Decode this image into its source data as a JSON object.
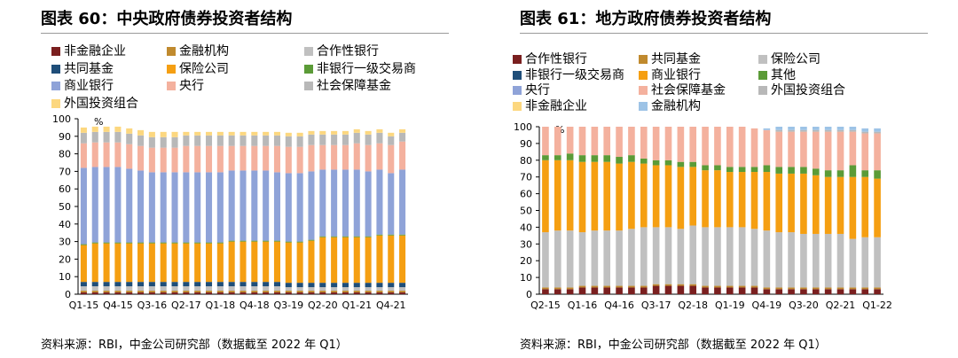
{
  "footer": {
    "left_source": "资料来源：RBI，中金公司研究部（数据截至 2022 年 Q1）",
    "right_source": "资料来源：RBI，中金公司研究部（数据截至 2022 年 Q1）"
  },
  "chart_data": [
    {
      "type": "bar",
      "stacked": true,
      "title": "图表 60：中央政府债券投资者结构",
      "ylabel": "%",
      "ylim": [
        0,
        100
      ],
      "yticks": [
        0,
        10,
        20,
        30,
        40,
        50,
        60,
        70,
        80,
        90,
        100
      ],
      "grid": false,
      "legend_position": "top",
      "x_tick_labels": [
        "Q1-15",
        "Q4-15",
        "Q3-16",
        "Q2-17",
        "Q1-18",
        "Q4-18",
        "Q3-19",
        "Q2-20",
        "Q1-21",
        "Q4-21"
      ],
      "categories": [
        "Q1-15",
        "Q2-15",
        "Q3-15",
        "Q4-15",
        "Q1-16",
        "Q2-16",
        "Q3-16",
        "Q4-16",
        "Q1-17",
        "Q2-17",
        "Q3-17",
        "Q4-17",
        "Q1-18",
        "Q2-18",
        "Q3-18",
        "Q4-18",
        "Q1-19",
        "Q2-19",
        "Q3-19",
        "Q4-19",
        "Q1-20",
        "Q2-20",
        "Q3-20",
        "Q4-20",
        "Q1-21",
        "Q2-21",
        "Q3-21",
        "Q4-21",
        "Q1-22"
      ],
      "series": [
        {
          "name": "非金融企业",
          "color": "#7a1f1f",
          "values": [
            1.0,
            1.0,
            1.0,
            1.0,
            1.0,
            1.0,
            1.0,
            1.0,
            1.0,
            1.0,
            1.0,
            1.0,
            1.0,
            1.0,
            1.0,
            1.0,
            1.0,
            1.0,
            1.0,
            1.0,
            1.0,
            1.0,
            1.0,
            1.0,
            1.0,
            1.0,
            1.0,
            1.0,
            1.0
          ]
        },
        {
          "name": "金融机构",
          "color": "#c08a2e",
          "values": [
            1.0,
            1.0,
            1.0,
            1.0,
            1.0,
            1.0,
            1.0,
            1.0,
            1.0,
            1.0,
            1.0,
            1.0,
            1.0,
            1.0,
            1.0,
            1.0,
            1.0,
            1.0,
            1.0,
            1.0,
            1.0,
            1.0,
            1.0,
            1.0,
            1.0,
            1.0,
            1.0,
            1.0,
            1.0
          ]
        },
        {
          "name": "合作性银行",
          "color": "#c0c0c0",
          "values": [
            2.5,
            2.5,
            2.5,
            2.5,
            2.5,
            2.5,
            2.5,
            2.5,
            2.5,
            2.5,
            2.5,
            2.5,
            2.5,
            2.5,
            2.5,
            2.5,
            2.5,
            2.5,
            2.0,
            2.0,
            2.0,
            2.0,
            2.0,
            2.0,
            2.0,
            2.0,
            2.0,
            2.0,
            2.0
          ]
        },
        {
          "name": "共同基金",
          "color": "#1f4e79",
          "values": [
            2.5,
            2.5,
            2.5,
            2.5,
            2.5,
            2.5,
            2.5,
            2.5,
            2.5,
            2.5,
            2.5,
            2.5,
            2.5,
            2.5,
            2.5,
            2.5,
            2.5,
            2.5,
            2.5,
            2.5,
            2.5,
            2.5,
            2.5,
            2.5,
            2.5,
            2.5,
            2.5,
            2.5,
            2.5
          ]
        },
        {
          "name": "保险公司",
          "color": "#f59f12",
          "values": [
            21,
            22,
            22,
            22,
            22,
            22,
            22,
            22,
            22,
            22,
            22,
            22,
            22,
            23,
            23,
            23,
            23,
            23,
            23,
            23,
            24,
            26,
            26,
            26,
            26,
            26,
            27,
            27,
            27
          ]
        },
        {
          "name": "非银行一级交易商",
          "color": "#5b9b37",
          "values": [
            0.5,
            0.5,
            0.5,
            0.5,
            0.5,
            0.5,
            0.5,
            0.5,
            0.5,
            0.5,
            0.5,
            0.5,
            0.5,
            0.5,
            0.5,
            0.5,
            0.5,
            0.5,
            0.5,
            0.5,
            0.5,
            0.5,
            0.5,
            0.5,
            0.5,
            0.5,
            0.5,
            0.5,
            0.5
          ]
        },
        {
          "name": "商业银行",
          "color": "#8fa3d8",
          "values": [
            43.5,
            43,
            43,
            43,
            42,
            41,
            40,
            40,
            40,
            40,
            40,
            40,
            40,
            40,
            40,
            40,
            40,
            39,
            39,
            39,
            39,
            38,
            38,
            38,
            38,
            37,
            37,
            35,
            37
          ]
        },
        {
          "name": "央行",
          "color": "#f4b19e",
          "values": [
            14,
            14,
            14,
            14,
            14,
            14,
            14,
            14,
            14,
            15,
            15,
            15,
            15,
            14,
            14,
            14,
            14,
            15,
            15,
            15,
            15,
            14,
            14,
            14,
            15,
            15,
            15,
            16,
            16
          ]
        },
        {
          "name": "社会保障基金",
          "color": "#b8b8b8",
          "values": [
            6,
            6,
            6,
            6,
            6,
            6,
            6,
            6,
            6,
            6,
            6,
            6,
            6,
            6,
            6,
            6,
            6,
            6,
            6,
            6,
            6,
            6,
            6,
            6,
            6,
            6,
            6,
            5,
            5
          ]
        },
        {
          "name": "外国投资组合",
          "color": "#fcd77f",
          "values": [
            3,
            3,
            3,
            3,
            3,
            3,
            3,
            3,
            3,
            2,
            2,
            2,
            2,
            2,
            2,
            2,
            2,
            2,
            2,
            2,
            2,
            2,
            2,
            2,
            2,
            2,
            2,
            2,
            2
          ]
        }
      ]
    },
    {
      "type": "bar",
      "stacked": true,
      "title": "图表 61：地方政府债券投资者结构",
      "ylabel": "%",
      "ylim": [
        0,
        100
      ],
      "yticks": [
        0,
        10,
        20,
        30,
        40,
        50,
        60,
        70,
        80,
        90,
        100
      ],
      "grid": false,
      "legend_position": "top",
      "x_tick_labels": [
        "Q2-15",
        "Q1-16",
        "Q4-16",
        "Q3-17",
        "Q2-18",
        "Q1-19",
        "Q4-19",
        "Q3-20",
        "Q2-21",
        "Q1-22"
      ],
      "categories": [
        "Q2-15",
        "Q3-15",
        "Q4-15",
        "Q1-16",
        "Q2-16",
        "Q3-16",
        "Q4-16",
        "Q1-17",
        "Q2-17",
        "Q3-17",
        "Q4-17",
        "Q1-18",
        "Q2-18",
        "Q3-18",
        "Q4-18",
        "Q1-19",
        "Q2-19",
        "Q3-19",
        "Q4-19",
        "Q1-20",
        "Q2-20",
        "Q3-20",
        "Q4-20",
        "Q1-21",
        "Q2-21",
        "Q3-21",
        "Q4-21",
        "Q1-22"
      ],
      "series": [
        {
          "name": "合作性银行",
          "color": "#7a1f1f",
          "values": [
            3,
            3,
            3,
            4,
            4,
            4,
            4,
            4,
            4,
            5,
            5,
            5,
            5,
            4,
            4,
            4,
            4,
            4,
            3,
            3,
            3,
            3,
            3,
            3,
            3,
            3,
            3,
            3
          ]
        },
        {
          "name": "共同基金",
          "color": "#c08a2e",
          "values": [
            1,
            1,
            1,
            1,
            1,
            1,
            1,
            1,
            1,
            1,
            1,
            1,
            1,
            1,
            1,
            1,
            1,
            1,
            1,
            1,
            1,
            1,
            1,
            1,
            1,
            1,
            1,
            1
          ]
        },
        {
          "name": "保险公司",
          "color": "#c0c0c0",
          "values": [
            33,
            34,
            34,
            32,
            33,
            33,
            33,
            34,
            35,
            34,
            34,
            33,
            35,
            35,
            35,
            35,
            35,
            34,
            34,
            33,
            33,
            32,
            32,
            32,
            32,
            29,
            30,
            30
          ]
        },
        {
          "name": "非银行一级交易商",
          "color": "#1f4e79",
          "values": [
            0,
            0,
            0,
            0,
            0,
            0,
            0,
            0,
            0,
            0,
            0,
            0,
            0,
            0,
            0,
            0,
            0,
            0,
            0,
            0,
            0,
            0,
            0,
            0,
            0,
            0,
            0,
            0
          ]
        },
        {
          "name": "商业银行",
          "color": "#f59f12",
          "values": [
            43,
            42,
            42,
            42,
            41,
            41,
            40,
            40,
            38,
            37,
            37,
            37,
            35,
            34,
            34,
            33,
            33,
            34,
            35,
            35,
            35,
            36,
            35,
            34,
            34,
            37,
            36,
            35
          ]
        },
        {
          "name": "其他",
          "color": "#5b9b37",
          "values": [
            3,
            3,
            4,
            4,
            4,
            4,
            4,
            4,
            3,
            3,
            3,
            3,
            3,
            3,
            3,
            3,
            3,
            3,
            4,
            4,
            4,
            4,
            4,
            4,
            4,
            7,
            4,
            5
          ]
        },
        {
          "name": "央行",
          "color": "#8fa3d8",
          "values": [
            0,
            0,
            0,
            0,
            0,
            0,
            0,
            0,
            0,
            0,
            0,
            0,
            0,
            0,
            0,
            0,
            0,
            0,
            0,
            0,
            0,
            0,
            0,
            0,
            0,
            0,
            0,
            0
          ]
        },
        {
          "name": "社会保障基金",
          "color": "#f4b19e",
          "values": [
            17,
            17,
            16,
            17,
            17,
            17,
            18,
            17,
            19,
            20,
            20,
            21,
            21,
            23,
            23,
            24,
            24,
            23,
            21,
            21,
            21,
            21,
            22,
            23,
            23,
            20,
            22,
            22
          ]
        },
        {
          "name": "外国投资组合",
          "color": "#b8b8b8",
          "values": [
            0,
            0,
            0,
            0,
            0,
            0,
            0,
            0,
            0,
            0,
            0,
            0,
            0,
            0,
            0,
            0,
            0,
            0,
            0,
            1,
            1,
            1,
            1,
            1,
            1,
            1,
            1,
            1
          ]
        },
        {
          "name": "非金融企业",
          "color": "#fcd77f",
          "values": [
            0,
            0,
            0,
            0,
            0,
            0,
            0,
            0,
            0,
            0,
            0,
            0,
            0,
            0,
            0,
            0,
            0,
            0,
            0,
            0,
            0,
            0,
            0,
            0,
            0,
            0,
            0,
            0
          ]
        },
        {
          "name": "金融机构",
          "color": "#9dc3e6",
          "values": [
            0,
            0,
            0,
            0,
            0,
            0,
            0,
            0,
            0,
            0,
            0,
            0,
            0,
            0,
            0,
            0,
            0,
            0,
            1,
            2,
            2,
            2,
            2,
            2,
            2,
            2,
            2,
            2
          ]
        }
      ]
    }
  ]
}
